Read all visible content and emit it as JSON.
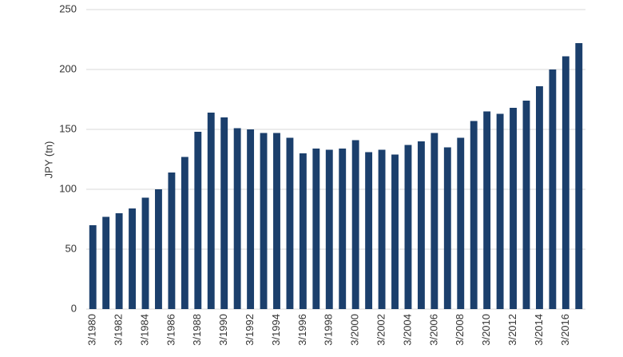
{
  "chart_data": {
    "type": "bar",
    "y_label": "JPY (tn)",
    "categories": [
      "3/1980",
      null,
      "3/1982",
      null,
      "3/1984",
      null,
      "3/1986",
      null,
      "3/1988",
      null,
      "3/1990",
      null,
      "3/1992",
      null,
      "3/1994",
      null,
      "3/1996",
      null,
      "3/1998",
      null,
      "3/2000",
      null,
      "3/2002",
      null,
      "3/2004",
      null,
      "3/2006",
      null,
      "3/2008",
      null,
      "3/2010",
      null,
      "3/2012",
      null,
      "3/2014",
      null,
      "3/2016",
      null
    ],
    "values": [
      70,
      77,
      80,
      84,
      93,
      100,
      114,
      127,
      148,
      164,
      160,
      151,
      150,
      147,
      147,
      143,
      130,
      134,
      133,
      134,
      141,
      131,
      133,
      129,
      137,
      140,
      147,
      135,
      143,
      157,
      165,
      163,
      168,
      174,
      186,
      200,
      211,
      222
    ],
    "color": "#1b3f6c",
    "ylim": [
      0,
      250
    ],
    "yticks": [
      0,
      50,
      100,
      150,
      200,
      250
    ],
    "grid": true
  }
}
